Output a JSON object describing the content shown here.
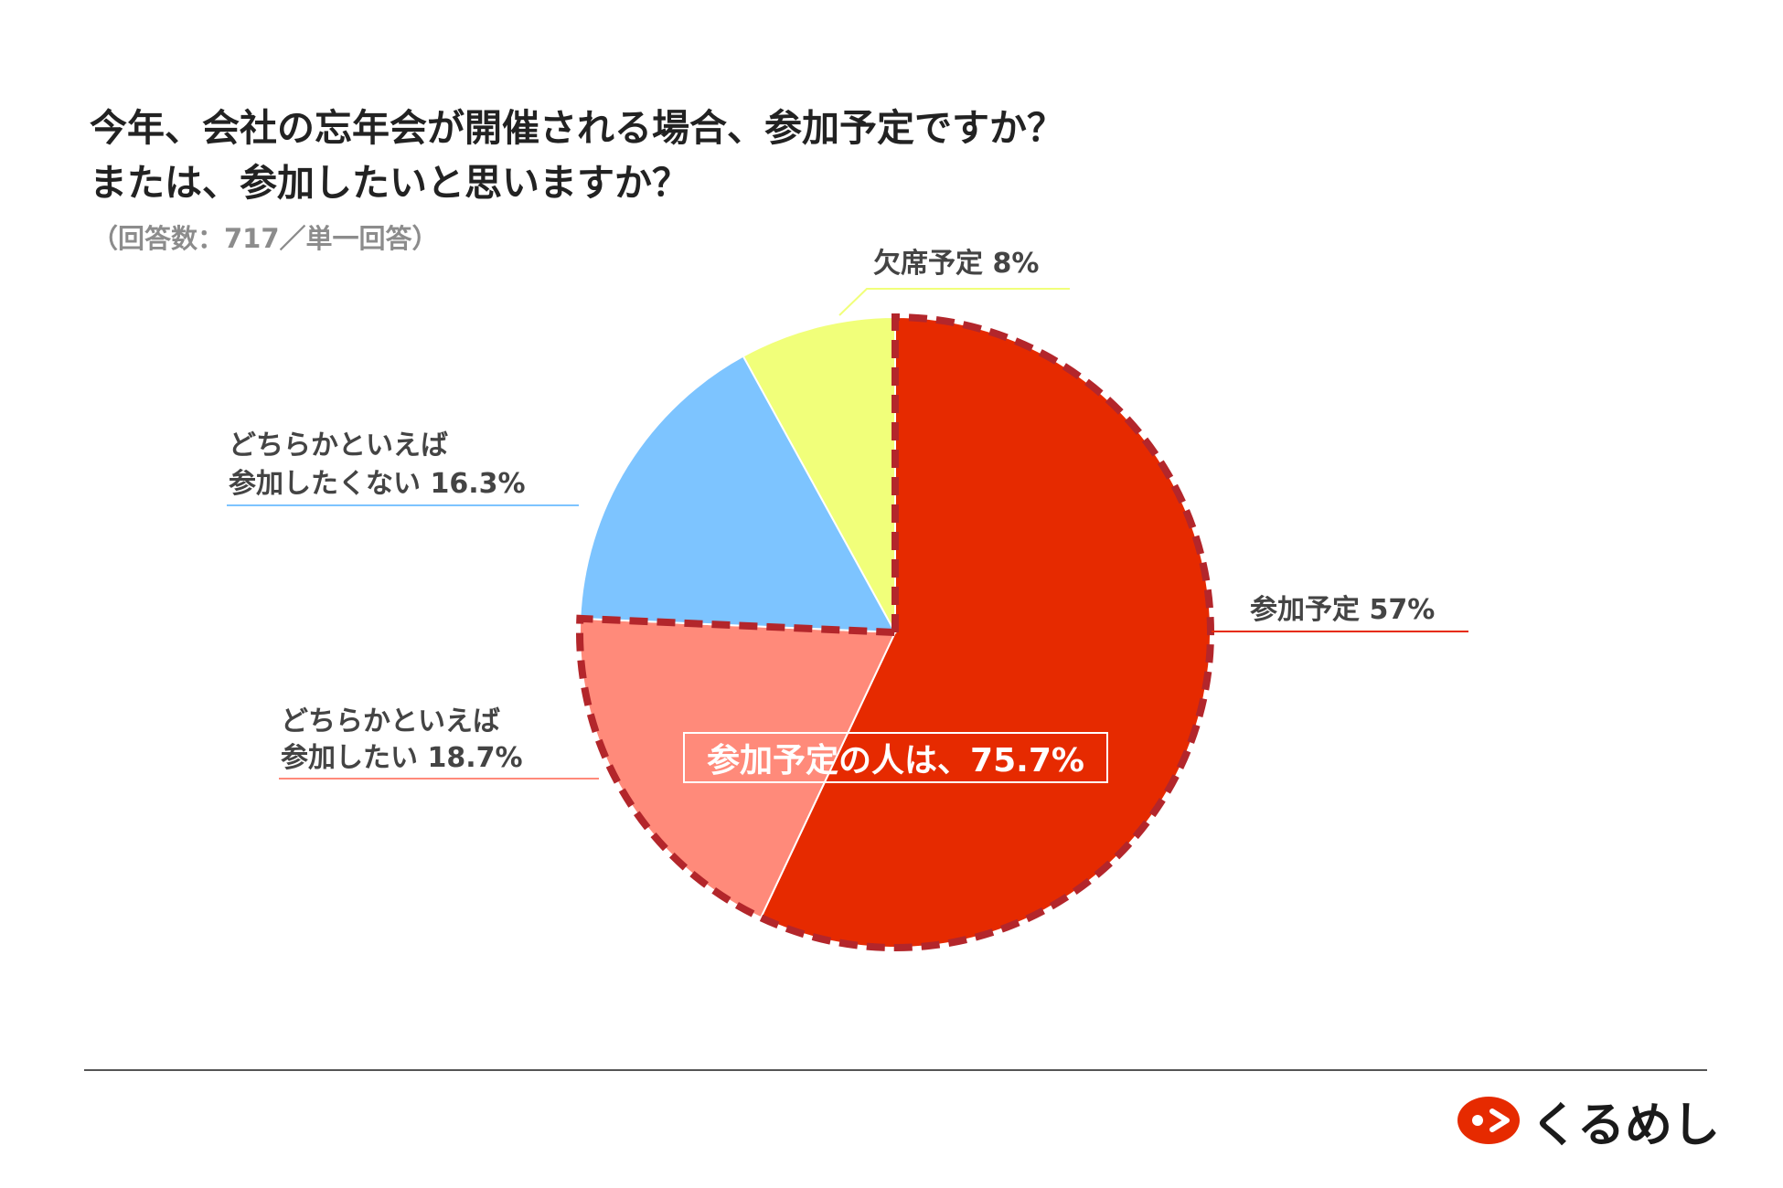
{
  "title": {
    "line1": "今年、会社の忘年会が開催される場合、参加予定ですか？",
    "line2": "または、参加したいと思いますか？"
  },
  "subtitle": "（回答数：717／単一回答）",
  "chart_data": {
    "type": "pie",
    "title": "今年、会社の忘年会が開催される場合、参加予定ですか？または、参加したいと思いますか？",
    "slices": [
      {
        "label": "参加予定",
        "value": 57,
        "value_label": "57%",
        "color": "#e62a00"
      },
      {
        "label": "どちらかといえば参加したい",
        "value": 18.7,
        "value_label": "18.7%",
        "color": "#ff8a7a"
      },
      {
        "label": "どちらかといえば参加したくない",
        "value": 16.3,
        "value_label": "16.3%",
        "color": "#7dc4ff"
      },
      {
        "label": "欠席予定",
        "value": 8,
        "value_label": "8%",
        "color": "#f1ff7a"
      }
    ],
    "start": "12 o'clock",
    "direction": "clockwise",
    "highlight": {
      "text": "参加予定の人は、75.7%",
      "slices": [
        "参加予定",
        "どちらかといえば参加したい"
      ],
      "border_color": "#b3262b",
      "style": "dashed"
    }
  },
  "labels": {
    "attend": {
      "line1": "参加予定 57%"
    },
    "rather_attend": {
      "line1": "どちらかといえば",
      "line2": "参加したい 18.7%"
    },
    "rather_not": {
      "line1": "どちらかといえば",
      "line2": "参加したくない 16.3%"
    },
    "absent": {
      "line1": "欠席予定 8%"
    }
  },
  "logo": {
    "text": "くるめし",
    "mark_color": "#e62a00"
  }
}
